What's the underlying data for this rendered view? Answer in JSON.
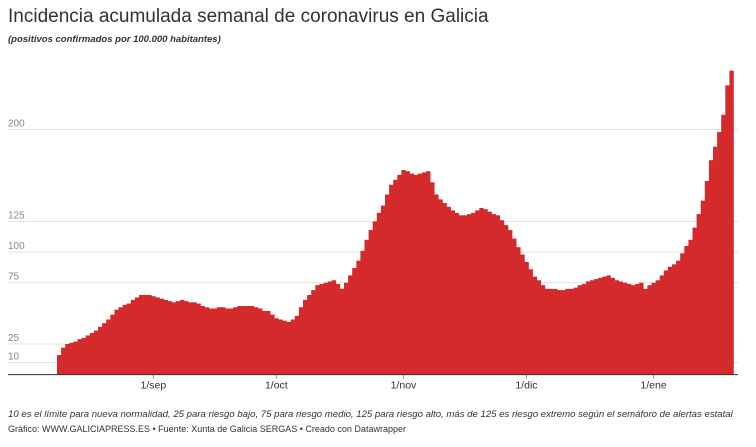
{
  "chart_data": {
    "type": "bar",
    "title": "Incidencia acumulada semanal de coronavirus en Galicia",
    "subtitle": "(positivos confirmados por 100.000 habitantes)",
    "note": "10 es el límite para nueva normalidad, 25 para riesgo bajo, 75 para riesgo medio, 125 para riesgo alto, más de 125 es riesgo extremo según el semáforo de alertas estatal",
    "source": "Gráfico: WWW.GALICIAPRESS.ES • Fuente: Xunta de Galicia SERGAS • Creado con Datawrapper",
    "color": "#d52a2c",
    "grid": true,
    "ylim": [
      -6,
      260
    ],
    "yticks": [
      10,
      25,
      75,
      100,
      125,
      200
    ],
    "categories": [
      null,
      null,
      null,
      null,
      null,
      null,
      null,
      null,
      null,
      null,
      null,
      null,
      null,
      null,
      null,
      null,
      null,
      null,
      null,
      null,
      null,
      null,
      null,
      "1/sep",
      null,
      null,
      null,
      null,
      null,
      null,
      null,
      null,
      null,
      null,
      null,
      null,
      null,
      null,
      null,
      null,
      null,
      null,
      null,
      null,
      null,
      null,
      null,
      null,
      null,
      null,
      null,
      null,
      null,
      "1/oct",
      null,
      null,
      null,
      null,
      null,
      null,
      null,
      null,
      null,
      null,
      null,
      null,
      null,
      null,
      null,
      null,
      null,
      null,
      null,
      null,
      null,
      null,
      null,
      null,
      null,
      null,
      null,
      null,
      null,
      null,
      "1/nov",
      null,
      null,
      null,
      null,
      null,
      null,
      null,
      null,
      null,
      null,
      null,
      null,
      null,
      null,
      null,
      null,
      null,
      null,
      null,
      null,
      null,
      null,
      null,
      null,
      null,
      null,
      null,
      null,
      null,
      "1/dic",
      null,
      null,
      null,
      null,
      null,
      null,
      null,
      null,
      null,
      null,
      null,
      null,
      null,
      null,
      null,
      null,
      null,
      null,
      null,
      null,
      null,
      null,
      null,
      null,
      null,
      null,
      null,
      null,
      null,
      null,
      "1/ene",
      null,
      null,
      null,
      null,
      null,
      null,
      null,
      null,
      null,
      null,
      null,
      null,
      null,
      null,
      null,
      null,
      null,
      null,
      null
    ],
    "values": [
      16,
      22,
      25,
      26,
      27,
      29,
      30,
      32,
      34,
      36,
      39,
      42,
      45,
      49,
      53,
      55,
      57,
      58,
      61,
      63,
      65,
      65,
      65,
      64,
      63,
      62,
      61,
      60,
      59,
      60,
      61,
      60,
      59,
      59,
      58,
      56,
      55,
      54,
      54,
      55,
      55,
      54,
      54,
      55,
      56,
      56,
      56,
      56,
      55,
      54,
      52,
      52,
      49,
      46,
      45,
      44,
      43,
      45,
      48,
      55,
      61,
      65,
      69,
      73,
      74,
      75,
      76,
      77,
      74,
      70,
      75,
      81,
      87,
      93,
      101,
      110,
      118,
      125,
      132,
      138,
      147,
      155,
      159,
      163,
      167,
      166,
      164,
      163,
      164,
      165,
      166,
      157,
      147,
      143,
      140,
      137,
      134,
      132,
      130,
      130,
      131,
      132,
      134,
      136,
      135,
      133,
      131,
      130,
      126,
      122,
      118,
      111,
      104,
      98,
      92,
      86,
      80,
      77,
      73,
      70,
      70,
      70,
      69,
      69,
      70,
      70,
      71,
      73,
      74,
      76,
      77,
      78,
      79,
      80,
      81,
      79,
      77,
      76,
      75,
      74,
      73,
      74,
      75,
      70,
      73,
      75,
      77,
      81,
      85,
      88,
      90,
      93,
      99,
      105,
      110,
      120,
      131,
      142,
      158,
      175,
      186,
      198,
      212,
      236,
      248
    ]
  }
}
